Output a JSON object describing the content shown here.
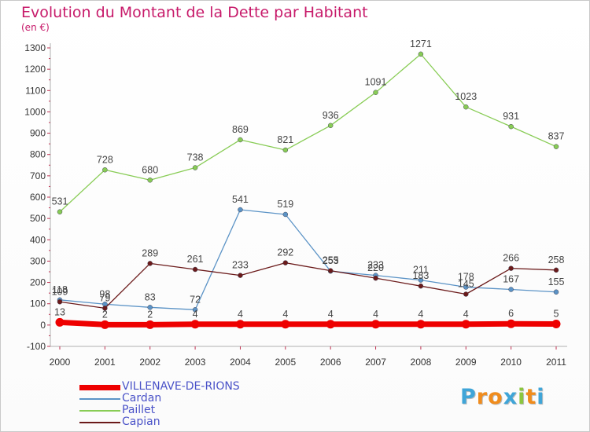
{
  "header": {
    "title": "Evolution du Montant de la Dette par Habitant",
    "unit": "(en €)"
  },
  "chart_data": {
    "type": "line",
    "title": "Evolution du Montant de la Dette par Habitant",
    "ylabel": "(en €)",
    "xlabel": "",
    "x": [
      "2000",
      "2001",
      "2002",
      "2003",
      "2004",
      "2005",
      "2006",
      "2007",
      "2008",
      "2009",
      "2010",
      "2011"
    ],
    "yticks": [
      -100,
      0,
      100,
      200,
      300,
      400,
      500,
      600,
      700,
      800,
      900,
      1000,
      1100,
      1200,
      1300
    ],
    "ylim": [
      -100,
      1300
    ],
    "grid": false,
    "legend_position": "bottom-left",
    "series": [
      {
        "name": "VILLENAVE-DE-RIONS",
        "color": "#ee0000",
        "width": 7,
        "values": [
          13,
          2,
          2,
          4,
          4,
          4,
          4,
          4,
          4,
          4,
          6,
          5
        ]
      },
      {
        "name": "Cardan",
        "color": "#5b93c6",
        "width": 1.3,
        "values": [
          118,
          98,
          83,
          72,
          541,
          519,
          253,
          233,
          211,
          178,
          167,
          155
        ]
      },
      {
        "name": "Paillet",
        "color": "#88cc55",
        "width": 1.3,
        "values": [
          531,
          728,
          680,
          738,
          869,
          821,
          936,
          1091,
          1271,
          1023,
          931,
          837
        ]
      },
      {
        "name": "Capian",
        "color": "#6b1a1a",
        "width": 1.3,
        "values": [
          109,
          79,
          289,
          261,
          233,
          292,
          255,
          220,
          183,
          145,
          266,
          258
        ]
      }
    ]
  },
  "brand": {
    "letters": [
      "P",
      "r",
      "o",
      "x",
      "i",
      "t",
      "i"
    ],
    "colors": [
      "#3fa5d8",
      "#f08c1d",
      "#f08c1d",
      "#3fa5d8",
      "#8cc63f",
      "#f08c1d",
      "#3fa5d8"
    ]
  }
}
